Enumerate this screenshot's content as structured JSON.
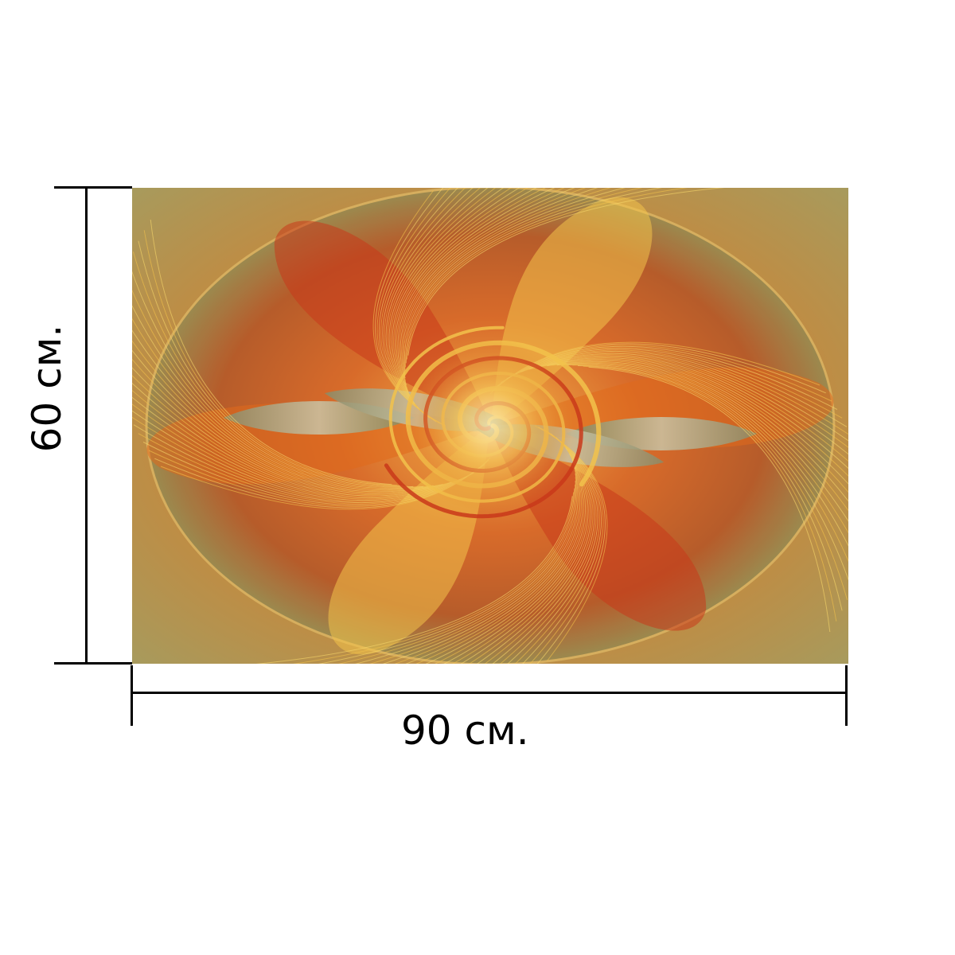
{
  "dimensions": {
    "width_label": "90 см.",
    "height_label": "60 см."
  },
  "artwork": {
    "palette": {
      "background": "#b89a55",
      "orange": "#e0691c",
      "red": "#c9381a",
      "gold": "#f2c24b",
      "yellow": "#f6d76a",
      "green": "#6e7a3c",
      "silver": "#a9a68a"
    }
  }
}
